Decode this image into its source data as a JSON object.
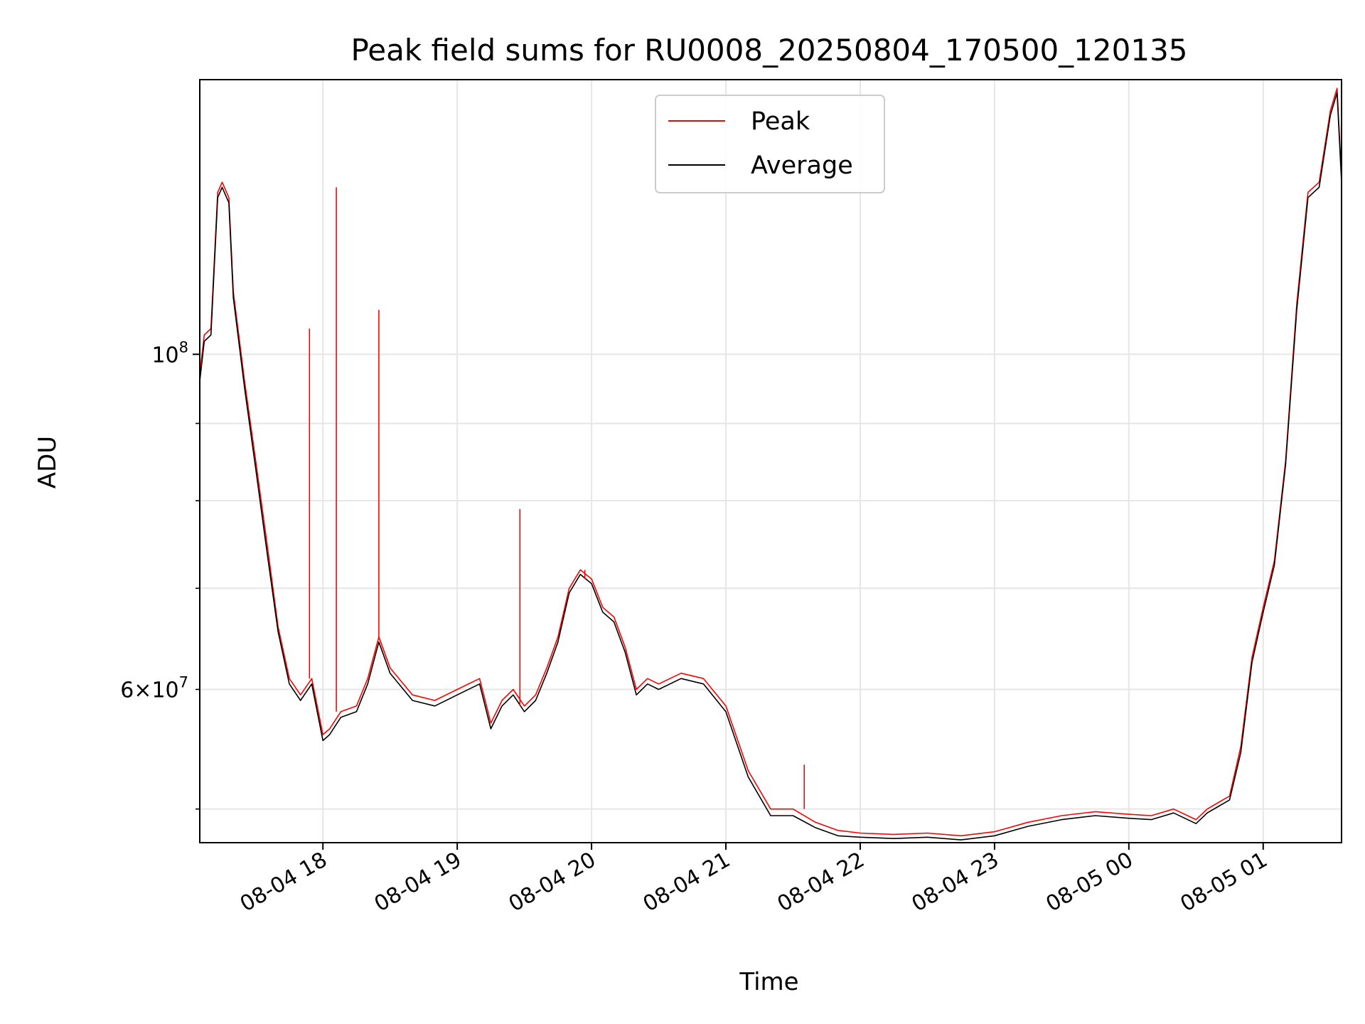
{
  "chart_data": {
    "type": "line",
    "title": "Peak field sums for RU0008_20250804_170500_120135",
    "xlabel": "Time",
    "ylabel": "ADU",
    "yscale": "log",
    "ylim": [
      47500000,
      152000000
    ],
    "xlim": [
      "2025-08-04 17:05",
      "2025-08-05 01:35"
    ],
    "grid": true,
    "legend_position": "upper center",
    "x_ticks": [
      {
        "t": "2025-08-04 18:00",
        "label": "08-04 18"
      },
      {
        "t": "2025-08-04 19:00",
        "label": "08-04 19"
      },
      {
        "t": "2025-08-04 20:00",
        "label": "08-04 20"
      },
      {
        "t": "2025-08-04 21:00",
        "label": "08-04 21"
      },
      {
        "t": "2025-08-04 22:00",
        "label": "08-04 22"
      },
      {
        "t": "2025-08-04 23:00",
        "label": "08-04 23"
      },
      {
        "t": "2025-08-05 00:00",
        "label": "08-05 00"
      },
      {
        "t": "2025-08-05 01:00",
        "label": "08-05 01"
      }
    ],
    "y_major_ticks": [
      {
        "value": 100000000,
        "base": "10",
        "exp": "8"
      }
    ],
    "y_minor_ticks": [
      {
        "value": 60000000,
        "mantissa": "6",
        "exp": "7"
      }
    ],
    "x": [
      "2025-08-04 17:05",
      "2025-08-04 17:07",
      "2025-08-04 17:10",
      "2025-08-04 17:13",
      "2025-08-04 17:15",
      "2025-08-04 17:18",
      "2025-08-04 17:20",
      "2025-08-04 17:25",
      "2025-08-04 17:30",
      "2025-08-04 17:35",
      "2025-08-04 17:40",
      "2025-08-04 17:45",
      "2025-08-04 17:50",
      "2025-08-04 17:55",
      "2025-08-04 18:00",
      "2025-08-04 18:03",
      "2025-08-04 18:08",
      "2025-08-04 18:15",
      "2025-08-04 18:20",
      "2025-08-04 18:25",
      "2025-08-04 18:30",
      "2025-08-04 18:40",
      "2025-08-04 18:50",
      "2025-08-04 19:00",
      "2025-08-04 19:10",
      "2025-08-04 19:15",
      "2025-08-04 19:20",
      "2025-08-04 19:25",
      "2025-08-04 19:30",
      "2025-08-04 19:35",
      "2025-08-04 19:40",
      "2025-08-04 19:45",
      "2025-08-04 19:50",
      "2025-08-04 19:55",
      "2025-08-04 20:00",
      "2025-08-04 20:05",
      "2025-08-04 20:10",
      "2025-08-04 20:15",
      "2025-08-04 20:20",
      "2025-08-04 20:25",
      "2025-08-04 20:30",
      "2025-08-04 20:40",
      "2025-08-04 20:50",
      "2025-08-04 21:00",
      "2025-08-04 21:10",
      "2025-08-04 21:20",
      "2025-08-04 21:30",
      "2025-08-04 21:40",
      "2025-08-04 21:50",
      "2025-08-04 22:00",
      "2025-08-04 22:15",
      "2025-08-04 22:30",
      "2025-08-04 22:45",
      "2025-08-04 23:00",
      "2025-08-04 23:15",
      "2025-08-04 23:30",
      "2025-08-04 23:45",
      "2025-08-05 00:00",
      "2025-08-05 00:10",
      "2025-08-05 00:20",
      "2025-08-05 00:30",
      "2025-08-05 00:35",
      "2025-08-05 00:40",
      "2025-08-05 00:45",
      "2025-08-05 00:50",
      "2025-08-05 00:55",
      "2025-08-05 01:00",
      "2025-08-05 01:05",
      "2025-08-05 01:10",
      "2025-08-05 01:15",
      "2025-08-05 01:20",
      "2025-08-05 01:25",
      "2025-08-05 01:30",
      "2025-08-05 01:33",
      "2025-08-05 01:35"
    ],
    "series": [
      {
        "name": "Peak",
        "color": "#ff0000",
        "values": [
          97000000,
          103000000,
          104000000,
          128000000,
          130000000,
          127000000,
          110000000,
          96000000,
          85000000,
          75000000,
          66000000,
          61000000,
          59500000,
          61000000,
          56000000,
          56500000,
          58000000,
          58500000,
          61000000,
          65000000,
          62000000,
          59500000,
          59000000,
          60000000,
          61000000,
          57000000,
          59000000,
          60000000,
          58500000,
          59500000,
          62000000,
          65000000,
          70000000,
          72000000,
          71000000,
          68000000,
          67000000,
          64000000,
          60000000,
          61000000,
          60500000,
          61500000,
          61000000,
          58500000,
          53000000,
          50000000,
          50000000,
          49000000,
          48400000,
          48200000,
          48100000,
          48200000,
          48000000,
          48300000,
          49000000,
          49500000,
          49800000,
          49600000,
          49500000,
          50000000,
          49200000,
          50000000,
          50500000,
          51000000,
          55000000,
          63000000,
          68000000,
          73000000,
          85000000,
          108000000,
          128000000,
          130000000,
          145000000,
          150000000,
          131000000
        ]
      },
      {
        "name": "Average",
        "color": "#000000",
        "values": [
          96000000,
          102000000,
          103000000,
          127000000,
          129000000,
          126000000,
          109000000,
          95000000,
          84000000,
          74000000,
          65500000,
          60500000,
          59000000,
          60500000,
          55500000,
          56000000,
          57500000,
          58000000,
          60500000,
          64500000,
          61500000,
          59000000,
          58500000,
          59500000,
          60500000,
          56500000,
          58500000,
          59500000,
          58000000,
          59000000,
          61500000,
          64500000,
          69500000,
          71500000,
          70500000,
          67500000,
          66500000,
          63500000,
          59500000,
          60500000,
          60000000,
          61000000,
          60500000,
          58000000,
          52500000,
          49500000,
          49500000,
          48600000,
          48000000,
          47900000,
          47800000,
          47900000,
          47700000,
          48000000,
          48700000,
          49200000,
          49500000,
          49300000,
          49200000,
          49700000,
          48900000,
          49700000,
          50200000,
          50700000,
          54500000,
          62500000,
          67500000,
          72500000,
          84500000,
          107000000,
          127000000,
          129000000,
          144000000,
          149000000,
          130000000
        ]
      }
    ],
    "spikes": [
      {
        "t": "2025-08-04 17:54",
        "value": 104000000
      },
      {
        "t": "2025-08-04 18:06",
        "value": 129000000
      },
      {
        "t": "2025-08-04 18:25",
        "value": 107000000
      },
      {
        "t": "2025-08-04 19:28",
        "value": 79000000
      },
      {
        "t": "2025-08-04 19:57",
        "value": 71000000
      },
      {
        "t": "2025-08-04 21:35",
        "value": 53500000
      }
    ]
  }
}
